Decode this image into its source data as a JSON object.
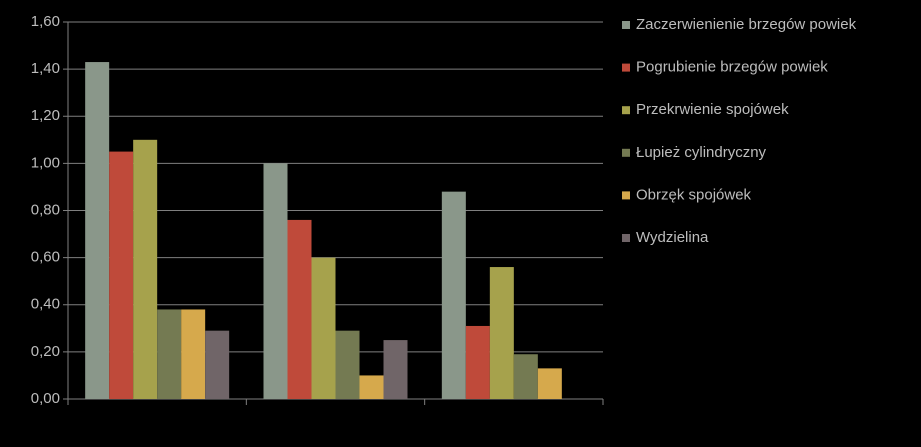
{
  "chart_data": {
    "type": "bar",
    "categories": [
      null,
      null,
      null
    ],
    "series": [
      {
        "name": "Zaczerwienienie brzegów powiek",
        "color": "#8a978a",
        "values": [
          1.43,
          1.0,
          0.88
        ]
      },
      {
        "name": "Pogrubienie brzegów powiek",
        "color": "#bf4a3a",
        "values": [
          1.05,
          0.76,
          0.31
        ]
      },
      {
        "name": "Przekrwienie spojówek",
        "color": "#a6a24c",
        "values": [
          1.1,
          0.6,
          0.56
        ]
      },
      {
        "name": "Łupież cylindryczny",
        "color": "#747a52",
        "values": [
          0.38,
          0.29,
          0.19
        ]
      },
      {
        "name": "Obrzęk spojówek",
        "color": "#d6a94c",
        "values": [
          0.38,
          0.1,
          0.13
        ]
      },
      {
        "name": "Wydzielina",
        "color": "#706568",
        "values": [
          0.29,
          0.25,
          null
        ]
      }
    ],
    "ylim": [
      0,
      1.6
    ],
    "yticks": [
      {
        "value": 0,
        "label": "0,00"
      },
      {
        "value": 0.2,
        "label": "0,20"
      },
      {
        "value": 0.4,
        "label": "0,40"
      },
      {
        "value": 0.6,
        "label": "0,60"
      },
      {
        "value": 0.8,
        "label": "0,80"
      },
      {
        "value": 1.0,
        "label": "1,00"
      },
      {
        "value": 1.2,
        "label": "1,20"
      },
      {
        "value": 1.4,
        "label": "1,40"
      },
      {
        "value": 1.6,
        "label": "1,60"
      }
    ],
    "grid": true,
    "legend": "right"
  }
}
